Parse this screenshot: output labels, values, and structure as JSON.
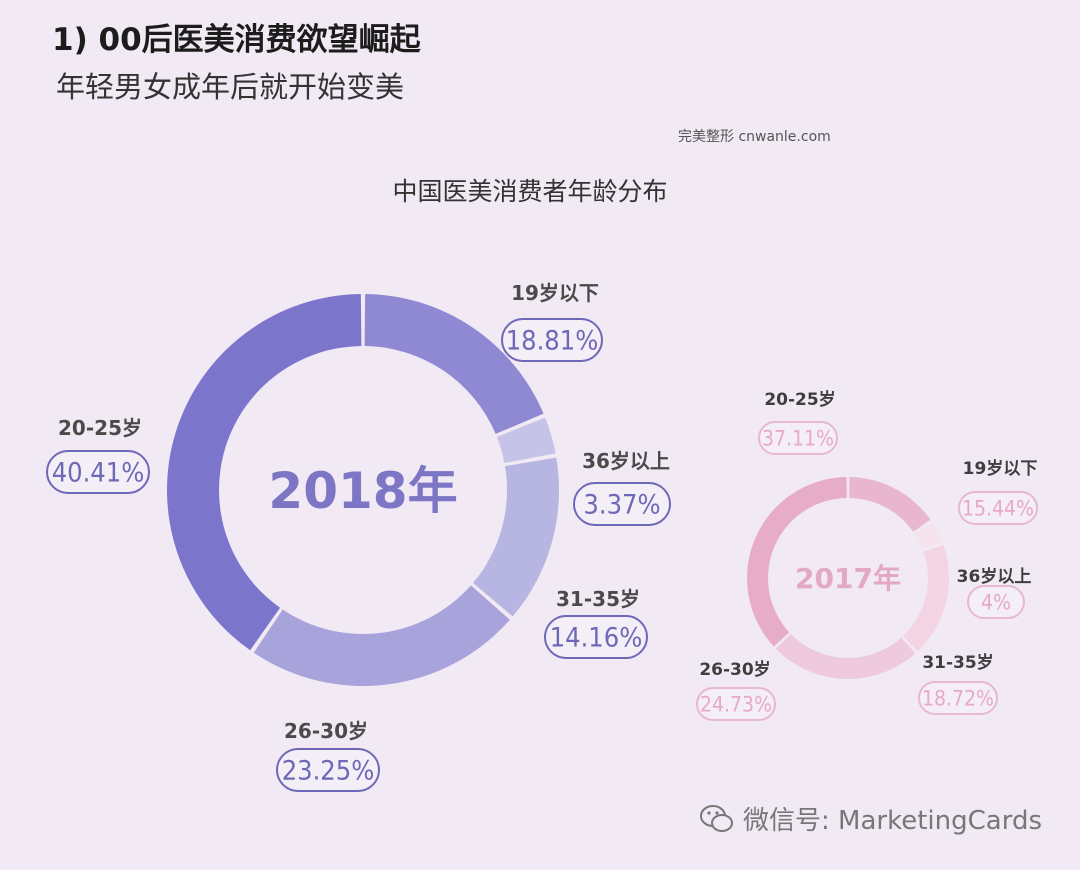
{
  "header": {
    "title": "1) 00后医美消费欲望崛起",
    "subtitle": "年轻男女成年后就开始变美",
    "source": "完美整形 cnwanle.com"
  },
  "watermark": "微信号: MarketingCards",
  "chart_data": [
    {
      "type": "pie",
      "title": "中国医美消费者年龄分布",
      "center_label": "2018年",
      "categories": [
        "19岁以下",
        "36岁以上",
        "31-35岁",
        "26-30岁",
        "20-25岁"
      ],
      "values": [
        18.81,
        3.37,
        14.16,
        23.25,
        40.41
      ],
      "value_labels": [
        "18.81%",
        "3.37%",
        "14.16%",
        "23.25%",
        "40.41%"
      ],
      "colors": [
        "#8f88d3",
        "#c5c3e7",
        "#b7b6e2",
        "#a8a4db",
        "#7b76cc"
      ],
      "label_color": "#7a74c6"
    },
    {
      "type": "pie",
      "center_label": "2017年",
      "categories": [
        "19岁以下",
        "36岁以上",
        "31-35岁",
        "26-30岁",
        "20-25岁"
      ],
      "values": [
        15.44,
        4,
        18.72,
        24.73,
        37.11
      ],
      "value_labels": [
        "15.44%",
        "4%",
        "18.72%",
        "24.73%",
        "37.11%"
      ],
      "colors": [
        "#e9b7cd",
        "#f6e2ec",
        "#f2d4e2",
        "#eecadc",
        "#e7adc6"
      ],
      "label_color": "#e7a7c2"
    }
  ]
}
